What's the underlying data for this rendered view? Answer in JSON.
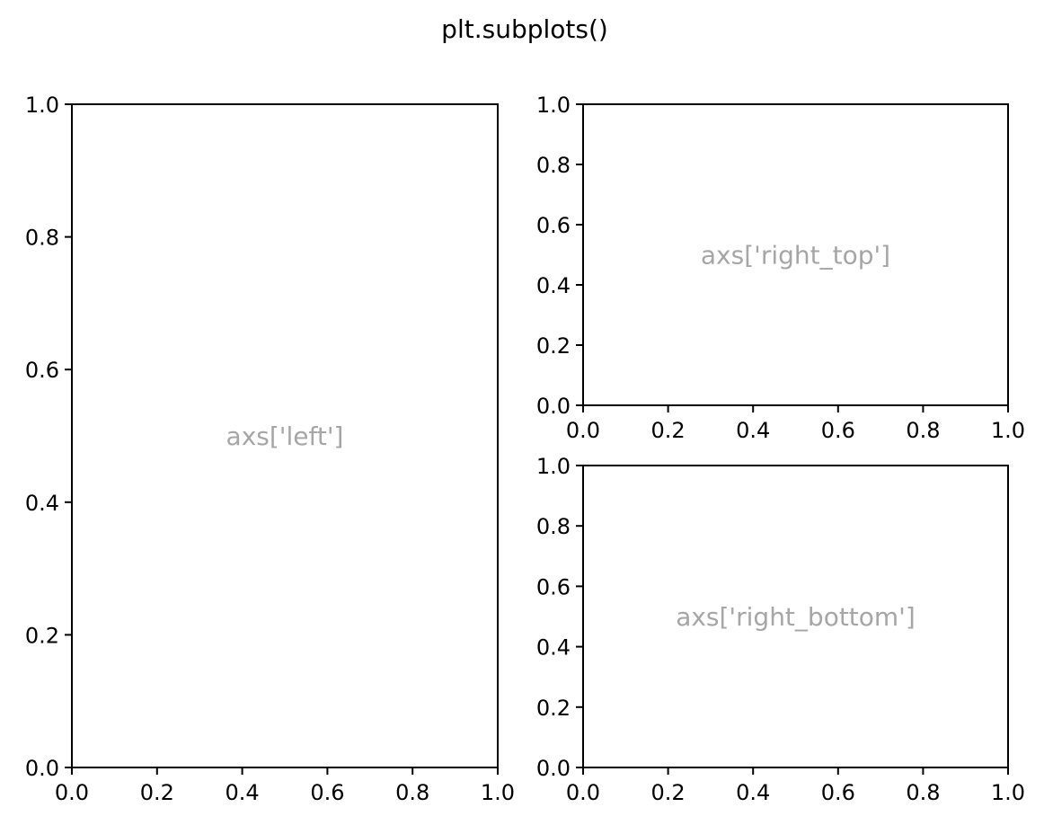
{
  "figure": {
    "suptitle": "plt.subplots()"
  },
  "chart_data": [
    {
      "type": "scatter",
      "id": "left",
      "title": "",
      "xlabel": "",
      "ylabel": "",
      "annotation": "axs['left']",
      "xlim": [
        0.0,
        1.0
      ],
      "ylim": [
        0.0,
        1.0
      ],
      "xticks": [
        "0.0",
        "0.2",
        "0.4",
        "0.6",
        "0.8",
        "1.0"
      ],
      "yticks": [
        "0.0",
        "0.2",
        "0.4",
        "0.6",
        "0.8",
        "1.0"
      ],
      "series": [],
      "grid": false
    },
    {
      "type": "scatter",
      "id": "right_top",
      "title": "",
      "xlabel": "",
      "ylabel": "",
      "annotation": "axs['right_top']",
      "xlim": [
        0.0,
        1.0
      ],
      "ylim": [
        0.0,
        1.0
      ],
      "xticks": [
        "0.0",
        "0.2",
        "0.4",
        "0.6",
        "0.8",
        "1.0"
      ],
      "yticks": [
        "0.0",
        "0.2",
        "0.4",
        "0.6",
        "0.8",
        "1.0"
      ],
      "series": [],
      "grid": false
    },
    {
      "type": "scatter",
      "id": "right_bottom",
      "title": "",
      "xlabel": "",
      "ylabel": "",
      "annotation": "axs['right_bottom']",
      "xlim": [
        0.0,
        1.0
      ],
      "ylim": [
        0.0,
        1.0
      ],
      "xticks": [
        "0.0",
        "0.2",
        "0.4",
        "0.6",
        "0.8",
        "1.0"
      ],
      "yticks": [
        "0.0",
        "0.2",
        "0.4",
        "0.6",
        "0.8",
        "1.0"
      ],
      "series": [],
      "grid": false
    }
  ],
  "colors": {
    "axes": "#000000",
    "annotation": "#a6a6a6",
    "background": "#ffffff"
  }
}
